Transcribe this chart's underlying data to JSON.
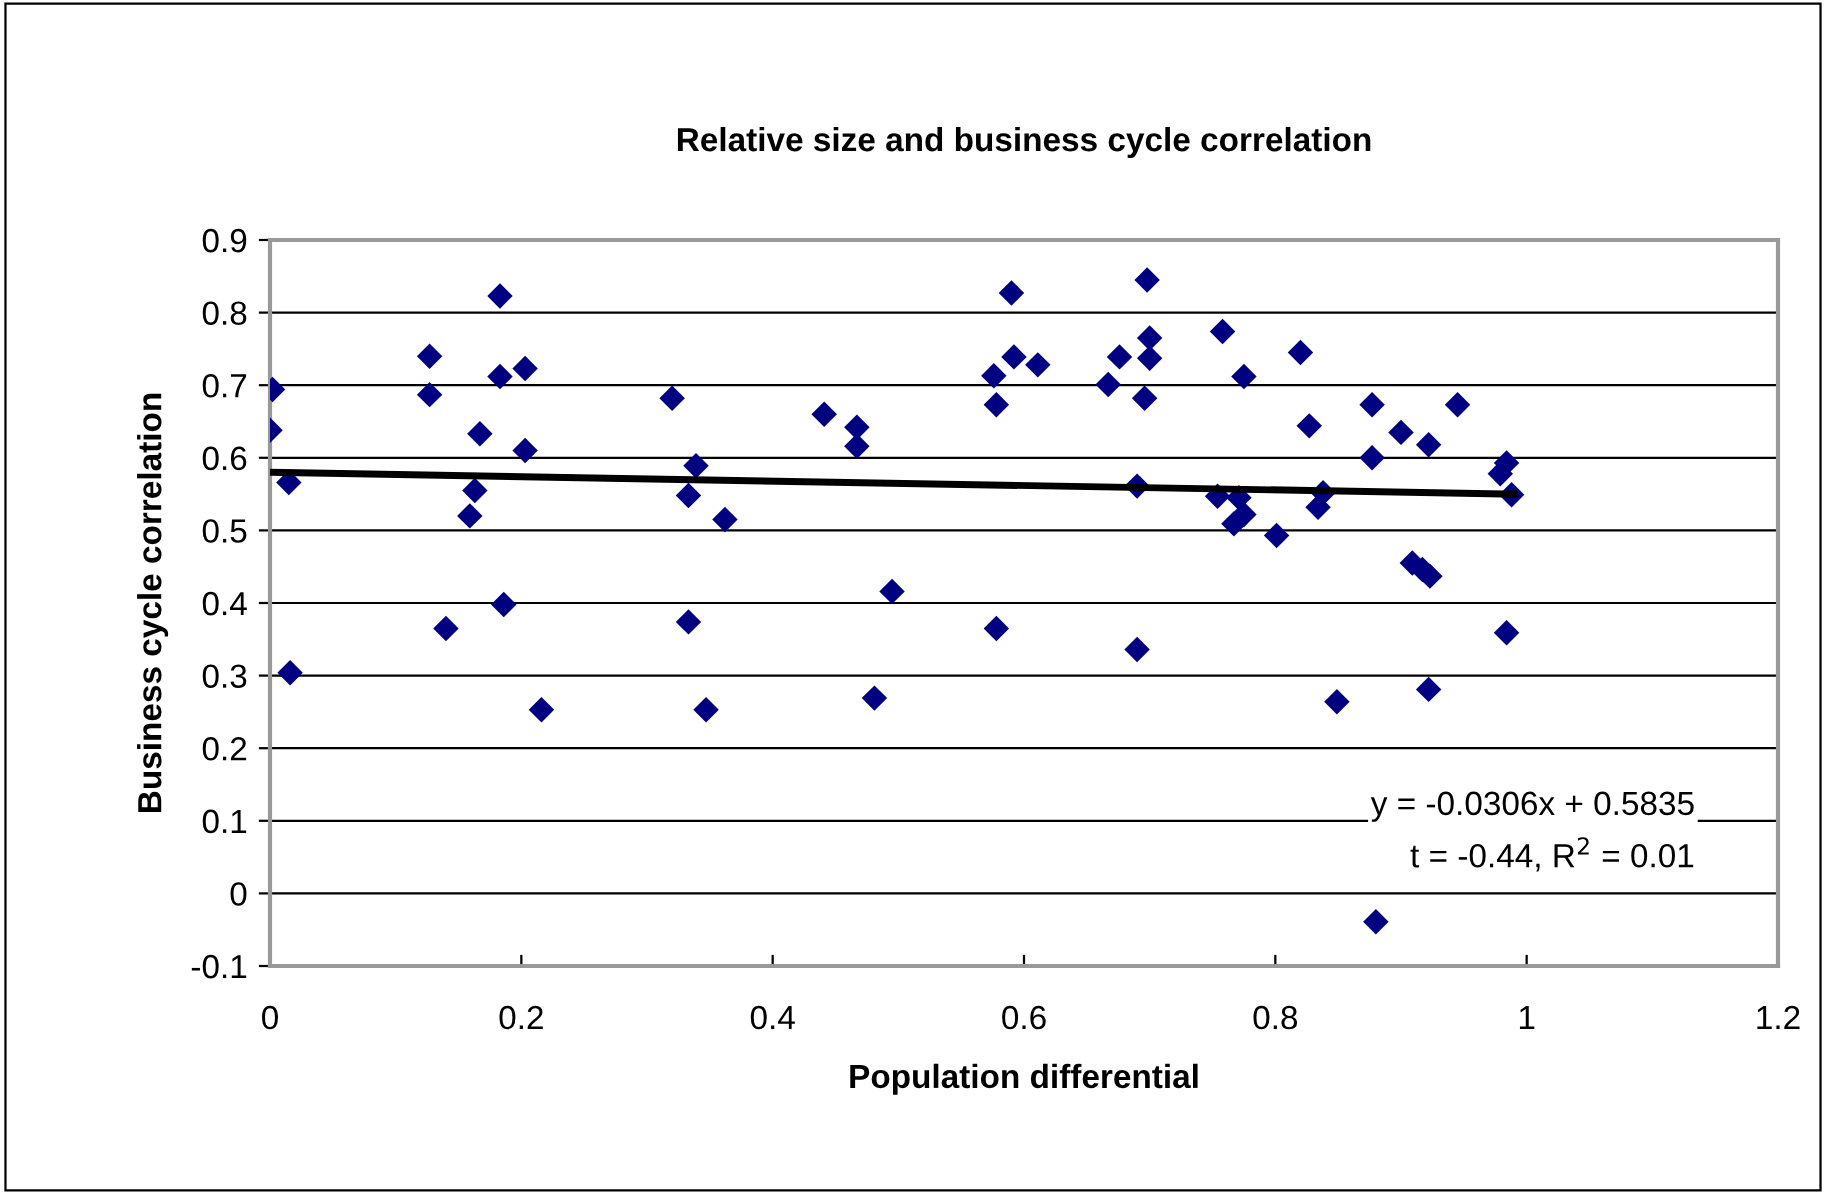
{
  "chart_data": {
    "type": "scatter",
    "title": "Relative size and business cycle correlation",
    "xlabel": "Population differential",
    "ylabel": "Business cycle correlation",
    "annotations": [
      "y = -0.0306x + 0.5835",
      "t = -0.44, R$^{2}$ = 0.01"
    ],
    "series": [
      {
        "color": "#000080",
        "marker": "diamond",
        "x": [
          0.002,
          0.0,
          0.015,
          0.016,
          0.127,
          0.127,
          0.14,
          0.167,
          0.163,
          0.159,
          0.183,
          0.183,
          0.186,
          0.203,
          0.203,
          0.216,
          0.32,
          0.339,
          0.333,
          0.333,
          0.347,
          0.362,
          0.441,
          0.467,
          0.467,
          0.495,
          0.481,
          0.59,
          0.576,
          0.578,
          0.592,
          0.611,
          0.578,
          0.667,
          0.676,
          0.7,
          0.7,
          0.696,
          0.69,
          0.69,
          0.698,
          0.758,
          0.775,
          0.754,
          0.771,
          0.775,
          0.767,
          0.801,
          0.82,
          0.827,
          0.877,
          0.877,
          0.9,
          0.922,
          0.945,
          0.838,
          0.834,
          0.979,
          0.984,
          0.988,
          0.984,
          0.909,
          0.917,
          0.923,
          0.922,
          0.849,
          0.88
        ],
        "values": [
          0.694,
          0.638,
          0.566,
          0.304,
          0.74,
          0.687,
          0.365,
          0.633,
          0.555,
          0.52,
          0.823,
          0.712,
          0.398,
          0.723,
          0.61,
          0.253,
          0.682,
          0.589,
          0.548,
          0.374,
          0.253,
          0.515,
          0.66,
          0.642,
          0.616,
          0.416,
          0.269,
          0.827,
          0.713,
          0.673,
          0.739,
          0.728,
          0.365,
          0.701,
          0.739,
          0.765,
          0.737,
          0.682,
          0.561,
          0.336,
          0.845,
          0.774,
          0.712,
          0.547,
          0.545,
          0.522,
          0.509,
          0.493,
          0.745,
          0.644,
          0.673,
          0.6,
          0.635,
          0.618,
          0.673,
          0.552,
          0.532,
          0.578,
          0.593,
          0.549,
          0.359,
          0.455,
          0.446,
          0.437,
          0.281,
          0.264,
          -0.039
        ]
      },
      {
        "type": "line",
        "color": "#000000",
        "marker": "none",
        "line_style": "solid",
        "x": [
          0,
          0.99
        ],
        "values": [
          0.58,
          0.55
        ]
      }
    ],
    "xlim": [
      0,
      1.2
    ],
    "xticks": [
      0,
      0.2,
      0.4,
      0.6,
      0.8,
      1,
      1.2
    ],
    "ylim": [
      -0.1,
      0.9
    ],
    "yticks": [
      -0.1,
      0,
      0.1,
      0.2,
      0.3,
      0.4,
      0.5,
      0.6,
      0.7,
      0.8,
      0.9
    ],
    "grid": "y",
    "legend": false
  }
}
